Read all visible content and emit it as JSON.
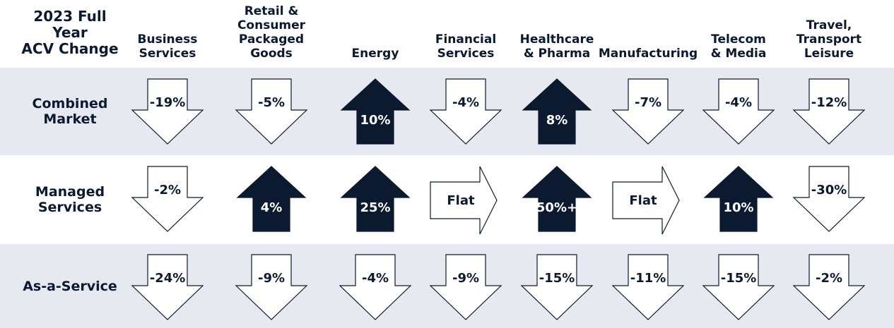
{
  "title": "2023 Full\nYear\nACV Change",
  "colors": {
    "band": "#e7e9f1",
    "navy": "#0b1a2e",
    "outline": "#0b1a2e"
  },
  "columns": [
    "Business\nServices",
    "Retail &\nConsumer\nPackaged Goods",
    "Energy",
    "Financial\nServices",
    "Healthcare\n& Pharma",
    "Manufacturing",
    "Telecom\n& Media",
    "Travel,\nTransport\nLeisure"
  ],
  "rows": [
    {
      "label": "Combined\nMarket",
      "cells": [
        {
          "value": "-19%",
          "direction": "down"
        },
        {
          "value": "-5%",
          "direction": "down"
        },
        {
          "value": "10%",
          "direction": "up"
        },
        {
          "value": "-4%",
          "direction": "down"
        },
        {
          "value": "8%",
          "direction": "up"
        },
        {
          "value": "-7%",
          "direction": "down"
        },
        {
          "value": "-4%",
          "direction": "down"
        },
        {
          "value": "-12%",
          "direction": "down"
        }
      ]
    },
    {
      "label": "Managed\nServices",
      "cells": [
        {
          "value": "-2%",
          "direction": "down"
        },
        {
          "value": "4%",
          "direction": "up"
        },
        {
          "value": "25%",
          "direction": "up"
        },
        {
          "value": "Flat",
          "direction": "flat"
        },
        {
          "value": "50%+",
          "direction": "up"
        },
        {
          "value": "Flat",
          "direction": "flat"
        },
        {
          "value": "10%",
          "direction": "up"
        },
        {
          "value": "-30%",
          "direction": "down"
        }
      ]
    },
    {
      "label": "As-a-Service",
      "cells": [
        {
          "value": "-24%",
          "direction": "down"
        },
        {
          "value": "-9%",
          "direction": "down"
        },
        {
          "value": "-4%",
          "direction": "down"
        },
        {
          "value": "-9%",
          "direction": "down"
        },
        {
          "value": "-15%",
          "direction": "down"
        },
        {
          "value": "-11%",
          "direction": "down"
        },
        {
          "value": "-15%",
          "direction": "down"
        },
        {
          "value": "-2%",
          "direction": "down"
        }
      ]
    }
  ]
}
